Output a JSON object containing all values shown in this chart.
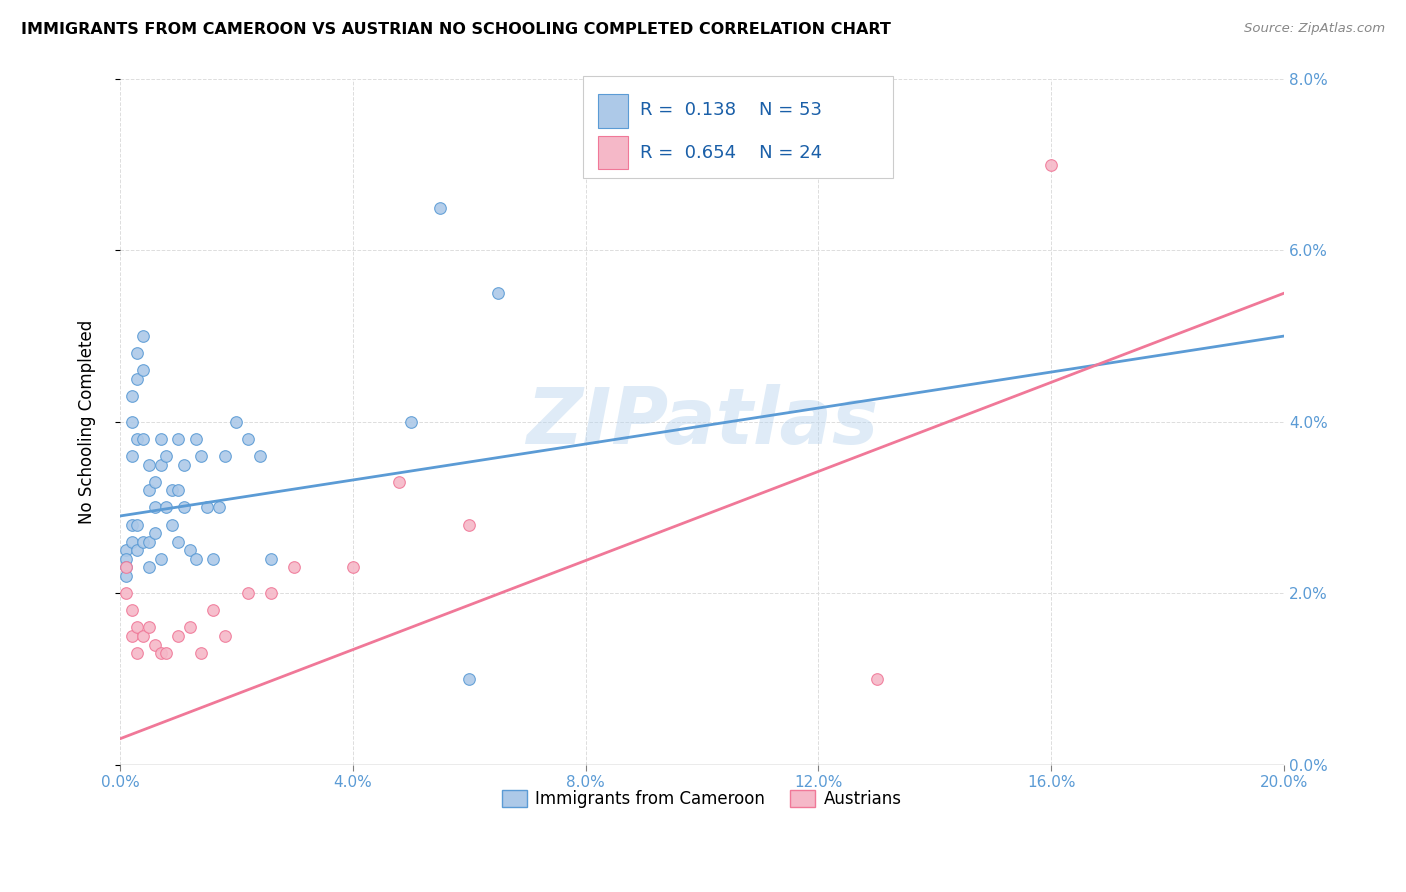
{
  "title": "IMMIGRANTS FROM CAMEROON VS AUSTRIAN NO SCHOOLING COMPLETED CORRELATION CHART",
  "source": "Source: ZipAtlas.com",
  "ylabel": "No Schooling Completed",
  "xlim": [
    0,
    0.2
  ],
  "ylim": [
    0,
    0.08
  ],
  "xticks": [
    0.0,
    0.04,
    0.08,
    0.12,
    0.16,
    0.2
  ],
  "yticks": [
    0.0,
    0.02,
    0.04,
    0.06,
    0.08
  ],
  "blue_R": "0.138",
  "blue_N": "53",
  "pink_R": "0.654",
  "pink_N": "24",
  "blue_color": "#adc9e8",
  "pink_color": "#f5b8c8",
  "blue_line_color": "#5b9bd5",
  "pink_line_color": "#f07898",
  "legend_label_blue": "Immigrants from Cameroon",
  "legend_label_pink": "Austrians",
  "blue_scatter_x": [
    0.001,
    0.001,
    0.001,
    0.001,
    0.002,
    0.002,
    0.002,
    0.002,
    0.002,
    0.003,
    0.003,
    0.003,
    0.003,
    0.003,
    0.004,
    0.004,
    0.004,
    0.004,
    0.005,
    0.005,
    0.005,
    0.005,
    0.006,
    0.006,
    0.006,
    0.007,
    0.007,
    0.007,
    0.008,
    0.008,
    0.009,
    0.009,
    0.01,
    0.01,
    0.01,
    0.011,
    0.011,
    0.012,
    0.013,
    0.013,
    0.014,
    0.015,
    0.016,
    0.017,
    0.018,
    0.02,
    0.022,
    0.024,
    0.026,
    0.05,
    0.055,
    0.06,
    0.065
  ],
  "blue_scatter_y": [
    0.025,
    0.024,
    0.023,
    0.022,
    0.043,
    0.04,
    0.036,
    0.028,
    0.026,
    0.048,
    0.045,
    0.038,
    0.028,
    0.025,
    0.05,
    0.046,
    0.038,
    0.026,
    0.035,
    0.032,
    0.026,
    0.023,
    0.033,
    0.03,
    0.027,
    0.038,
    0.035,
    0.024,
    0.036,
    0.03,
    0.032,
    0.028,
    0.038,
    0.032,
    0.026,
    0.035,
    0.03,
    0.025,
    0.038,
    0.024,
    0.036,
    0.03,
    0.024,
    0.03,
    0.036,
    0.04,
    0.038,
    0.036,
    0.024,
    0.04,
    0.065,
    0.01,
    0.055
  ],
  "pink_scatter_x": [
    0.001,
    0.001,
    0.002,
    0.002,
    0.003,
    0.003,
    0.004,
    0.005,
    0.006,
    0.007,
    0.008,
    0.01,
    0.012,
    0.014,
    0.016,
    0.018,
    0.022,
    0.026,
    0.03,
    0.04,
    0.048,
    0.06,
    0.13,
    0.16
  ],
  "pink_scatter_y": [
    0.023,
    0.02,
    0.018,
    0.015,
    0.016,
    0.013,
    0.015,
    0.016,
    0.014,
    0.013,
    0.013,
    0.015,
    0.016,
    0.013,
    0.018,
    0.015,
    0.02,
    0.02,
    0.023,
    0.023,
    0.033,
    0.028,
    0.01,
    0.07
  ],
  "blue_line_x": [
    0.0,
    0.2
  ],
  "blue_line_y": [
    0.029,
    0.05
  ],
  "pink_line_x": [
    0.0,
    0.2
  ],
  "pink_line_y": [
    0.003,
    0.055
  ],
  "watermark": "ZIPatlas",
  "background_color": "#ffffff",
  "grid_color": "#dddddd"
}
